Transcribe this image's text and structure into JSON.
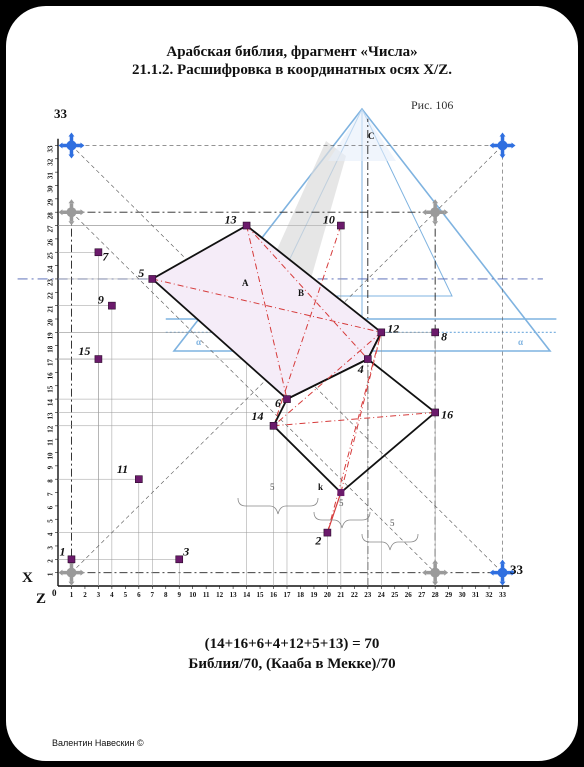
{
  "header": {
    "title_line1": "Арабская библия, фрагмент «Числа»",
    "title_line2": "21.1.2. Расшифровка в координатных осях X/Z.",
    "figure_label": "Рис. 106"
  },
  "axes": {
    "x_label": "X",
    "z_label": "Z",
    "zero_label": "0",
    "corner_label": "33",
    "ticks": [
      "1",
      "2",
      "3",
      "4",
      "5",
      "6",
      "7",
      "8",
      "9",
      "10",
      "11",
      "12",
      "13",
      "14",
      "15",
      "16",
      "17",
      "18",
      "19",
      "20",
      "21",
      "22",
      "23",
      "24",
      "25",
      "26",
      "27",
      "28",
      "29",
      "30",
      "31",
      "32",
      "33"
    ]
  },
  "points": [
    {
      "label": "1",
      "x": 1,
      "z": 2
    },
    {
      "label": "2",
      "x": 20,
      "z": 4
    },
    {
      "label": "3",
      "x": 9,
      "z": 2
    },
    {
      "label": "4",
      "x": 23,
      "z": 17
    },
    {
      "label": "5",
      "x": 7,
      "z": 23
    },
    {
      "label": "6",
      "x": 17,
      "z": 14
    },
    {
      "label": "7",
      "x": 3,
      "z": 25
    },
    {
      "label": "8",
      "x": 28,
      "z": 19
    },
    {
      "label": "9",
      "x": 4,
      "z": 21
    },
    {
      "label": "10",
      "x": 21,
      "z": 27
    },
    {
      "label": "11",
      "x": 6,
      "z": 8
    },
    {
      "label": "12",
      "x": 24,
      "z": 19
    },
    {
      "label": "13",
      "x": 14,
      "z": 27
    },
    {
      "label": "14",
      "x": 16,
      "z": 12
    },
    {
      "label": "15",
      "x": 3,
      "z": 17
    },
    {
      "label": "16",
      "x": 28,
      "z": 13
    }
  ],
  "annotations": {
    "a": "A",
    "b": "B",
    "c": "C",
    "k": "k",
    "alpha": "α",
    "brace": "5"
  },
  "colors": {
    "points": "#6b1a6b",
    "pyramid": "#7fb3e0",
    "dash_red": "#d63b3b",
    "marker_blue": "#2f6fe0",
    "marker_gray": "#9a9a9a"
  },
  "footer": {
    "formula": "(14+16+6+4+12+5+13) = 70",
    "subtitle": "Библия/70, (Кааба в Мекке)/70",
    "author": "Валентин Навескин ©"
  }
}
